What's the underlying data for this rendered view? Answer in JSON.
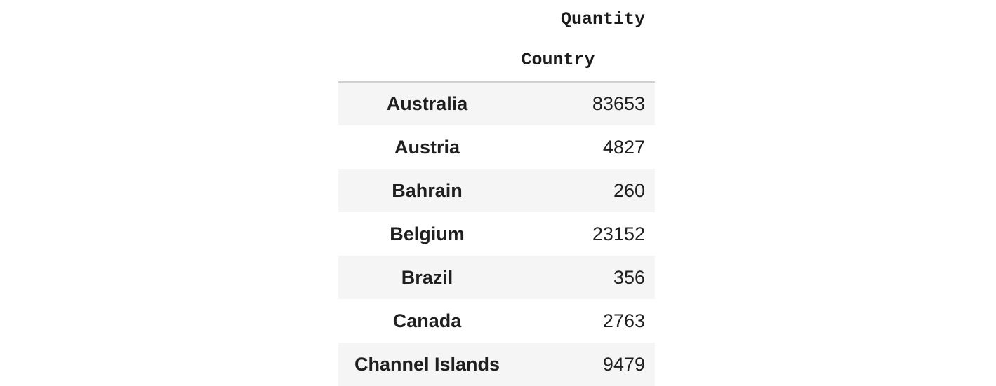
{
  "table": {
    "column_header": "Quantity",
    "index_name": "Country",
    "rows": [
      {
        "country": "Australia",
        "quantity": "83653"
      },
      {
        "country": "Austria",
        "quantity": "4827"
      },
      {
        "country": "Bahrain",
        "quantity": "260"
      },
      {
        "country": "Belgium",
        "quantity": "23152"
      },
      {
        "country": "Brazil",
        "quantity": "356"
      },
      {
        "country": "Canada",
        "quantity": "2763"
      },
      {
        "country": "Channel Islands",
        "quantity": "9479"
      }
    ]
  },
  "colors": {
    "stripe": "#f5f5f5",
    "text": "#1f1f1f",
    "header_rule": "#cfcfcf"
  }
}
